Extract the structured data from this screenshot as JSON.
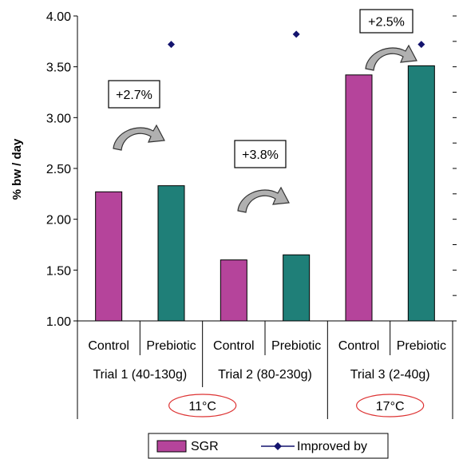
{
  "chart_data": {
    "type": "bar",
    "ylabel": "% bw / day",
    "ylim": [
      1.0,
      4.0
    ],
    "yticks": [
      "1.00",
      "1.50",
      "2.00",
      "2.50",
      "3.00",
      "3.50",
      "4.00"
    ],
    "categories": [
      "Control",
      "Prebiotic",
      "Control",
      "Prebiotic",
      "Control",
      "Prebiotic"
    ],
    "groups": [
      "Trial 1 (40-130g)",
      "Trial 2 (80-230g)",
      "Trial 3 (2-40g)"
    ],
    "temperatures": [
      "11°C",
      "17°C"
    ],
    "series": [
      {
        "name": "SGR",
        "type": "bar",
        "colors": [
          "#b5449b",
          "#1f7f78",
          "#b5449b",
          "#1f7f78",
          "#b5449b",
          "#1f7f78"
        ],
        "values": [
          2.27,
          2.33,
          1.6,
          1.65,
          3.42,
          3.51
        ]
      },
      {
        "name": "Improved by",
        "type": "marker",
        "color": "#14146e",
        "values": [
          null,
          3.72,
          null,
          3.82,
          null,
          3.72
        ]
      }
    ],
    "annotations": [
      "+2.7%",
      "+3.8%",
      "+2.5%"
    ],
    "grid": false,
    "legend": "bottom"
  }
}
